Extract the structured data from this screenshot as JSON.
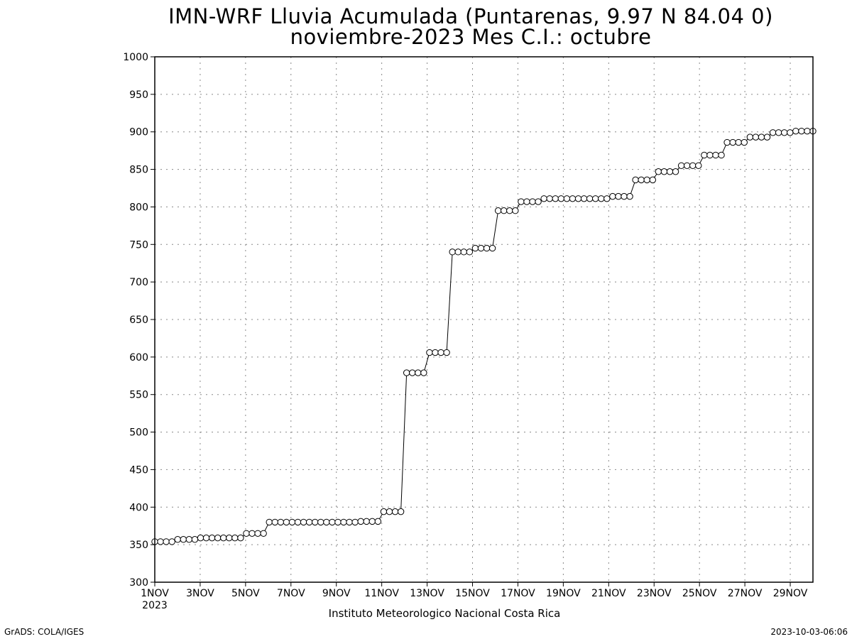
{
  "chart_data": {
    "type": "line",
    "title": "IMN-WRF  Lluvia Acumulada (Puntarenas, 9.97  N 84.04  0)",
    "subtitle": "noviembre-2023 Mes C.I.: octubre",
    "xlabel": "",
    "ylabel": "",
    "ylim": [
      300,
      1000
    ],
    "y_ticks": [
      300,
      350,
      400,
      450,
      500,
      550,
      600,
      650,
      700,
      750,
      800,
      850,
      900,
      950,
      1000
    ],
    "xlim": [
      1,
      30
    ],
    "x_ticks": [
      {
        "day": 1,
        "label": "1NOV",
        "sublabel": "2023"
      },
      {
        "day": 3,
        "label": "3NOV"
      },
      {
        "day": 5,
        "label": "5NOV"
      },
      {
        "day": 7,
        "label": "7NOV"
      },
      {
        "day": 9,
        "label": "9NOV"
      },
      {
        "day": 11,
        "label": "11NOV"
      },
      {
        "day": 13,
        "label": "13NOV"
      },
      {
        "day": 15,
        "label": "15NOV"
      },
      {
        "day": 17,
        "label": "17NOV"
      },
      {
        "day": 19,
        "label": "19NOV"
      },
      {
        "day": 21,
        "label": "21NOV"
      },
      {
        "day": 23,
        "label": "23NOV"
      },
      {
        "day": 25,
        "label": "25NOV"
      },
      {
        "day": 27,
        "label": "27NOV"
      },
      {
        "day": 29,
        "label": "29NOV"
      }
    ],
    "grid": true,
    "series": [
      {
        "values": [
          354,
          354,
          354,
          354,
          357,
          357,
          357,
          357,
          359,
          359,
          359,
          359,
          359,
          359,
          359,
          359,
          365,
          365,
          365,
          365,
          380,
          380,
          380,
          380,
          380,
          380,
          380,
          380,
          380,
          380,
          380,
          380,
          380,
          380,
          380,
          380,
          381,
          381,
          381,
          381,
          394,
          394,
          394,
          394,
          579,
          579,
          579,
          579,
          606,
          606,
          606,
          606,
          740,
          740,
          740,
          740,
          745,
          745,
          745,
          745,
          795,
          795,
          795,
          795,
          807,
          807,
          807,
          807,
          811,
          811,
          811,
          811,
          811,
          811,
          811,
          811,
          811,
          811,
          811,
          811,
          814,
          814,
          814,
          814,
          836,
          836,
          836,
          836,
          847,
          847,
          847,
          847,
          855,
          855,
          855,
          855,
          869,
          869,
          869,
          869,
          886,
          886,
          886,
          886,
          893,
          893,
          893,
          893,
          899,
          899,
          899,
          899,
          901,
          901,
          901,
          901
        ]
      }
    ]
  },
  "footer": {
    "institution": "Instituto Meteorologico Nacional Costa Rica",
    "left_credit": "GrADS: COLA/IGES",
    "timestamp": "2023-10-03-06:06"
  }
}
